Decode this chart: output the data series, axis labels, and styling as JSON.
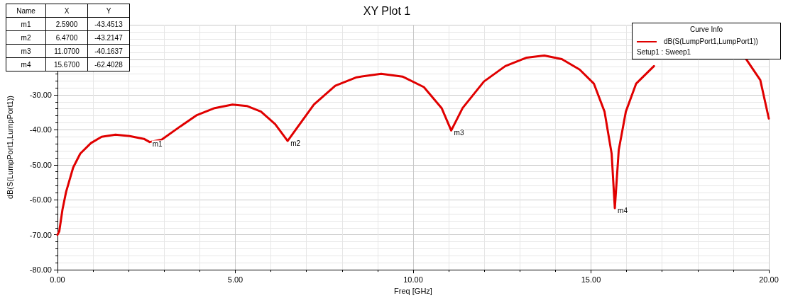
{
  "chart_data": {
    "type": "line",
    "title": "XY Plot 1",
    "xlabel": "Freq [GHz]",
    "ylabel": "dB(S(LumpPort1,LumpPort1))",
    "legend_title": "Curve Info",
    "legend": "top right",
    "grid": true,
    "marker": "none",
    "line_style": "solid",
    "xlim": [
      0,
      20
    ],
    "xticks": [
      {
        "value": 0,
        "label": "0.00"
      },
      {
        "value": 5,
        "label": "5.00"
      },
      {
        "value": 10,
        "label": "10.00"
      },
      {
        "value": 15,
        "label": "15.00"
      },
      {
        "value": 20,
        "label": "20.00"
      }
    ],
    "ylim": [
      -80,
      -10
    ],
    "yticks": [
      {
        "value": -80,
        "label": "-80.00"
      },
      {
        "value": -70,
        "label": "-70.00"
      },
      {
        "value": -60,
        "label": "-60.00"
      },
      {
        "value": -50,
        "label": "-50.00"
      },
      {
        "value": -40,
        "label": "-40.00"
      },
      {
        "value": -30,
        "label": "-30.00"
      },
      {
        "value": -20,
        "label": null
      },
      {
        "value": -10,
        "label": null
      }
    ],
    "series": [
      {
        "name": "dB(S(LumpPort1,LumpPort1))",
        "color": "#e00000",
        "x": [
          0,
          0.05,
          0.14,
          0.24,
          0.44,
          0.64,
          0.94,
          1.24,
          1.63,
          2.03,
          2.43,
          2.59,
          2.93,
          3.43,
          3.92,
          4.42,
          4.92,
          5.32,
          5.72,
          6.12,
          6.47,
          6.71,
          7.21,
          7.81,
          8.41,
          9.1,
          9.7,
          10.3,
          10.8,
          11.07,
          11.39,
          11.99,
          12.59,
          13.19,
          13.69,
          14.18,
          14.68,
          15.08,
          15.38,
          15.58,
          15.67,
          15.78,
          15.98,
          16.27,
          16.77,
          17.37,
          18.07,
          18.76,
          19.36,
          19.76,
          20
        ],
        "values": [
          -70,
          -69,
          -62.8,
          -57.8,
          -50.8,
          -46.8,
          -43.8,
          -42,
          -41.4,
          -41.8,
          -42.6,
          -43.5,
          -42.8,
          -39.2,
          -35.8,
          -33.8,
          -32.8,
          -33.2,
          -34.8,
          -38.4,
          -43.2,
          -39.8,
          -32.8,
          -27.4,
          -25,
          -24,
          -24.8,
          -27.8,
          -33.8,
          -40.2,
          -33.8,
          -26.2,
          -21.8,
          -19.4,
          -18.8,
          -19.8,
          -22.8,
          -26.8,
          -34.8,
          -46.8,
          -62.4,
          -45.8,
          -34.8,
          -26.8,
          -21.8,
          null,
          null,
          null,
          -19.8,
          -25.8,
          -36.8
        ]
      }
    ],
    "annotations": [
      {
        "text": "m1",
        "x": 2.59,
        "y": -43.4513
      },
      {
        "text": "m2",
        "x": 6.47,
        "y": -43.2147
      },
      {
        "text": "m3",
        "x": 11.07,
        "y": -40.1637
      },
      {
        "text": "m4",
        "x": 15.67,
        "y": -62.4028
      },
      "Name",
      "X",
      "Y",
      "m1",
      "2.5900",
      "-43.4513",
      "m2",
      "6.4700",
      "-43.2147",
      "m3",
      "11.0700",
      "-40.1637",
      "m4",
      "15.6700",
      "-62.4028",
      "Setup1 : Sweep1"
    ]
  }
}
